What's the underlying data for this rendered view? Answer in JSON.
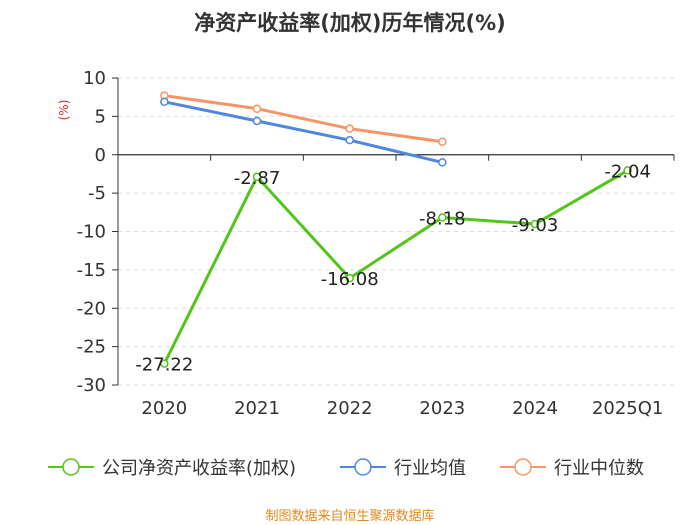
{
  "chart_data": {
    "type": "line",
    "title": "净资产收益率(加权)历年情况(%)",
    "ylabel": "(%)",
    "categories": [
      "2020",
      "2021",
      "2022",
      "2023",
      "2024",
      "2025Q1"
    ],
    "yticks": [
      10,
      5,
      0,
      -5,
      -10,
      -15,
      -20,
      -25,
      -30
    ],
    "ylim": [
      -30,
      10
    ],
    "grid": true,
    "legend_position": "bottom",
    "series": [
      {
        "name": "公司净资产收益率(加权)",
        "color": "#52c41a",
        "values": [
          -27.22,
          -2.87,
          -16.08,
          -8.18,
          -9.03,
          -2.04
        ],
        "labels": [
          "-27.22",
          "-2.87",
          "-16.08",
          "-8.18",
          "-9.03",
          "-2.04"
        ]
      },
      {
        "name": "行业均值",
        "color": "#4f86e0",
        "values": [
          6.9,
          4.4,
          1.9,
          -1.0,
          null,
          null
        ]
      },
      {
        "name": "行业中位数",
        "color": "#f59464",
        "values": [
          7.7,
          6.0,
          3.4,
          1.7,
          null,
          null
        ]
      }
    ]
  },
  "source_text": "制图数据来自恒生聚源数据库"
}
